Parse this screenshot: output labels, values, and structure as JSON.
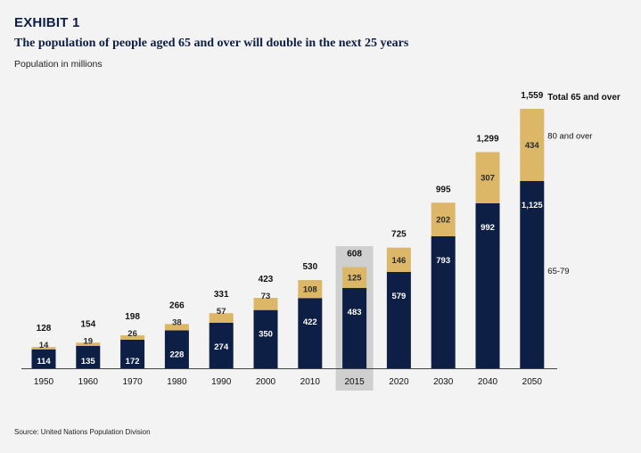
{
  "exhibit": "EXHIBIT 1",
  "title": "The population of people aged 65 and over will double in the next 25 years",
  "subtitle": "Population in millions",
  "source": "Source: United Nations Population Division",
  "colors": {
    "navy": "#0e1f45",
    "gold": "#dcb767",
    "highlight": "#cfcfd0",
    "background": "#f3f3f4"
  },
  "chart_data": {
    "type": "bar",
    "stacked": true,
    "categories": [
      "1950",
      "1960",
      "1970",
      "1980",
      "1990",
      "2000",
      "2010",
      "2015",
      "2020",
      "2030",
      "2040",
      "2050"
    ],
    "series": [
      {
        "name": "65-79",
        "values": [
          114,
          135,
          172,
          228,
          274,
          350,
          422,
          483,
          579,
          793,
          992,
          1125
        ],
        "color": "#0e1f45"
      },
      {
        "name": "80 and over",
        "values": [
          14,
          19,
          26,
          38,
          57,
          73,
          108,
          125,
          146,
          202,
          307,
          434
        ],
        "color": "#dcb767"
      }
    ],
    "value_labels": {
      "65-79": [
        "114",
        "135",
        "172",
        "228",
        "274",
        "350",
        "422",
        "483",
        "579",
        "793",
        "992",
        "1,125"
      ],
      "80 and over": [
        "14",
        "19",
        "26",
        "38",
        "57",
        "73",
        "108",
        "125",
        "146",
        "202",
        "307",
        "434"
      ]
    },
    "total_labels": [
      "128",
      "154",
      "198",
      "266",
      "331",
      "423",
      "530",
      "608",
      "725",
      "995",
      "1,299",
      "1,559"
    ],
    "annotations": {
      "total": "Total 65 and over",
      "over80": "80 and over",
      "age6579": "65-79"
    },
    "highlighted_category": "2015",
    "ylim": [
      0,
      1559
    ],
    "grid": false,
    "legend": "inline-right"
  }
}
